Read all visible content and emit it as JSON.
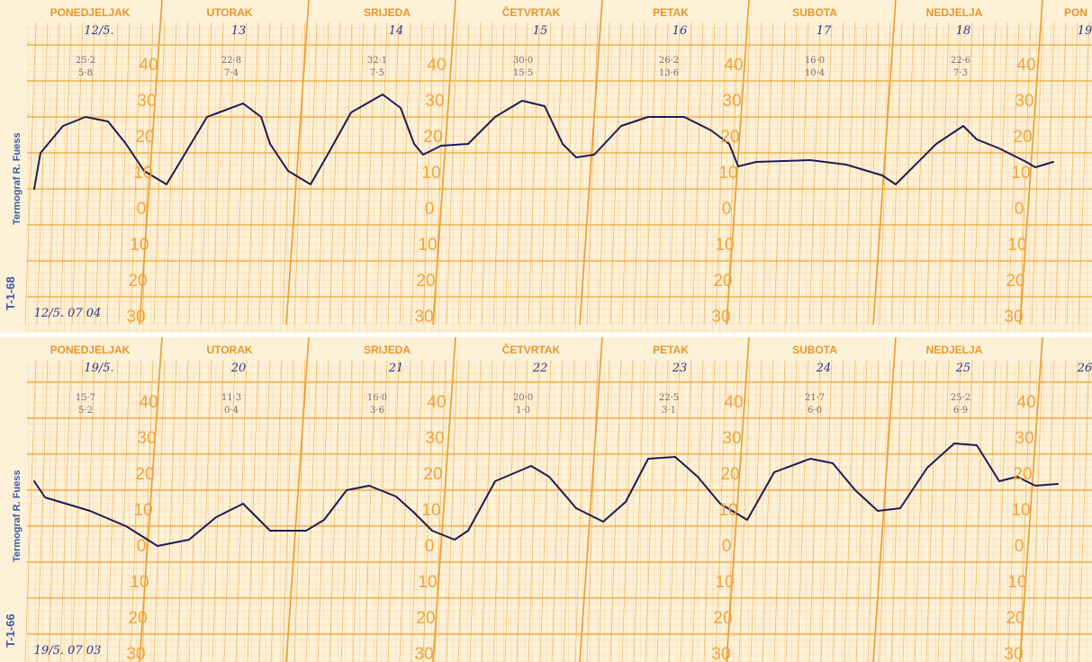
{
  "strips": [
    {
      "days": [
        "PONEDJELJAK",
        "UTORAK",
        "SRIJEDA",
        "ČETVRTAK",
        "PETAK",
        "SUBOTA",
        "NEDJELJA",
        "PON"
      ],
      "dates": [
        "12/5.",
        "13",
        "14",
        "15",
        "16",
        "17",
        "18",
        "19"
      ],
      "readings": [
        [
          "25·2",
          "5·8"
        ],
        [
          "22·8",
          "7·4"
        ],
        [
          "32·1",
          "7·5"
        ],
        [
          "30·0",
          "15·5"
        ],
        [
          "26·2",
          "13·6"
        ],
        [
          "16·0",
          "10·4"
        ],
        [
          "22·6",
          "7·3"
        ]
      ],
      "scale": [
        "40",
        "30",
        "20",
        "10",
        "0",
        "10",
        "20",
        "30"
      ],
      "maker": "Termograf R. Fuess",
      "form": "T-1-68",
      "note": "12/5. 07 04"
    },
    {
      "days": [
        "PONEDJELJAK",
        "UTORAK",
        "SRIJEDA",
        "ČETVRTAK",
        "PETAK",
        "SUBOTA",
        "NEDJELJA"
      ],
      "dates": [
        "19/5.",
        "20",
        "21",
        "22",
        "23",
        "24",
        "25",
        "26"
      ],
      "readings": [
        [
          "15·7",
          "5·2"
        ],
        [
          "11·3",
          "0·4"
        ],
        [
          "16·0",
          "3·6"
        ],
        [
          "20·0",
          "1·0"
        ],
        [
          "22·5",
          "3·1"
        ],
        [
          "21·7",
          "6·0"
        ],
        [
          "25·2",
          "6·9"
        ]
      ],
      "scale": [
        "40",
        "30",
        "20",
        "10",
        "0",
        "10",
        "20",
        "30"
      ],
      "maker": "Termograf R. Fuess",
      "form": "T-1-66",
      "note": "19/5. 07 03"
    }
  ]
}
